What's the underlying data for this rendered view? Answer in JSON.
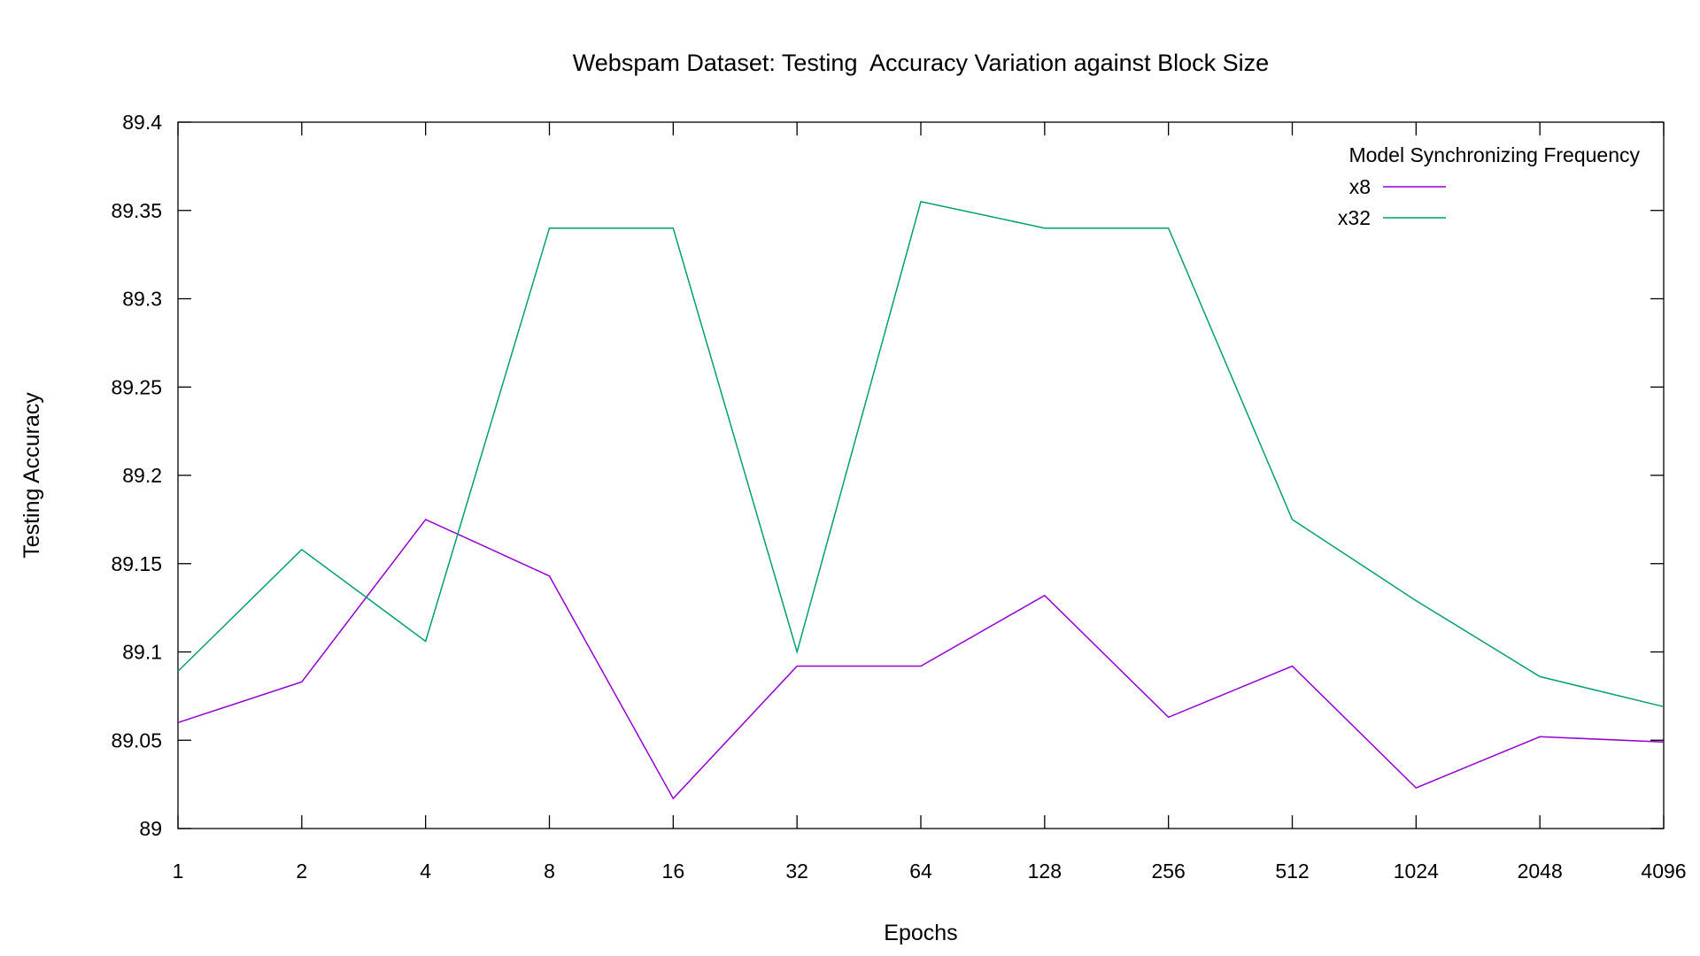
{
  "chart_data": {
    "type": "line",
    "title": "Webspam Dataset: Testing  Accuracy Variation against Block Size",
    "xlabel": "Epochs",
    "ylabel": "Testing Accuracy",
    "categories": [
      "1",
      "2",
      "4",
      "8",
      "16",
      "32",
      "64",
      "128",
      "256",
      "512",
      "1024",
      "2048",
      "4096"
    ],
    "ylim": [
      89,
      89.4
    ],
    "yticks": [
      "89",
      "89.05",
      "89.1",
      "89.15",
      "89.2",
      "89.25",
      "89.3",
      "89.35",
      "89.4"
    ],
    "grid": false,
    "legend": {
      "title": "Model Synchronizing Frequency",
      "position": "top-right"
    },
    "series": [
      {
        "name": "x8",
        "color": "#9400d3",
        "values": [
          89.06,
          89.083,
          89.175,
          89.143,
          89.017,
          89.092,
          89.092,
          89.132,
          89.063,
          89.092,
          89.023,
          89.052,
          89.049
        ]
      },
      {
        "name": "x32",
        "color": "#009e73",
        "values": [
          89.089,
          89.158,
          89.106,
          89.34,
          89.34,
          89.1,
          89.355,
          89.34,
          89.34,
          89.175,
          89.129,
          89.086,
          89.069
        ]
      }
    ]
  }
}
